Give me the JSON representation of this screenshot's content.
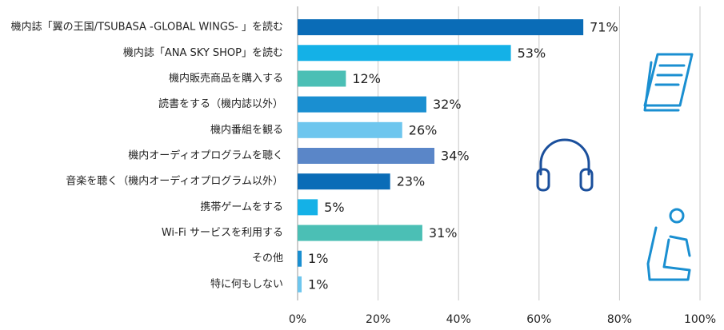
{
  "chart_data": {
    "type": "bar",
    "orientation": "horizontal",
    "categories": [
      "機内誌「翼の王国/TSUBASA -GLOBAL WINGS- 」を読む",
      "機内誌「ANA SKY SHOP」を読む",
      "機内販売商品を購入する",
      "読書をする（機内誌以外）",
      "機内番組を観る",
      "機内オーディオプログラムを聴く",
      "音楽を聴く（機内オーディオプログラム以外）",
      "携帯ゲームをする",
      "Wi-Fi サービスを利用する",
      "その他",
      "特に何もしない"
    ],
    "values": [
      71,
      53,
      12,
      32,
      26,
      34,
      23,
      5,
      31,
      1,
      1
    ],
    "value_labels": [
      "71%",
      "53%",
      "12%",
      "32%",
      "26%",
      "34%",
      "23%",
      "5%",
      "31%",
      "1%",
      "1%"
    ],
    "colors": [
      "#0a6cb7",
      "#14b1e7",
      "#4bbfb5",
      "#1a8fd1",
      "#6ec6ee",
      "#5a86c8",
      "#0a6cb7",
      "#14b1e7",
      "#4bbfb5",
      "#1a8fd1",
      "#6ec6ee"
    ],
    "xlim": [
      0,
      100
    ],
    "xticks": [
      {
        "value": 0,
        "label": "0%"
      },
      {
        "value": 20,
        "label": "20%"
      },
      {
        "value": 40,
        "label": "40%"
      },
      {
        "value": 60,
        "label": "60%"
      },
      {
        "value": 80,
        "label": "80%"
      },
      {
        "value": 100,
        "label": "100%"
      }
    ],
    "grid": true
  }
}
